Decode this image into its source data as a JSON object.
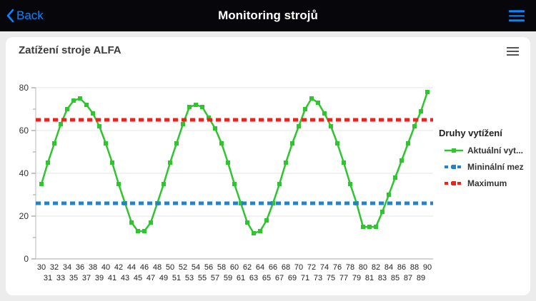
{
  "nav": {
    "back_label": "Back",
    "title": "Monitoring strojů"
  },
  "card": {
    "title": "Zatížení stroje ALFA"
  },
  "legend": {
    "title": "Druhy vytížení"
  },
  "colors": {
    "nav_accent": "#0a84ff",
    "series_green": "#2fc52f",
    "series_blue": "#2583c5",
    "series_red": "#e8251f"
  },
  "chart_data": {
    "type": "line",
    "title": "Zatížení stroje ALFA",
    "legend_title": "Druhy vytížení",
    "legend_position": "right",
    "grid": "horizontal",
    "ylim": [
      0,
      80
    ],
    "yticks": [
      0,
      20,
      40,
      60,
      80
    ],
    "yminor": [
      10,
      30,
      50,
      70
    ],
    "x": [
      30,
      31,
      32,
      33,
      34,
      35,
      36,
      37,
      38,
      39,
      40,
      41,
      42,
      43,
      44,
      45,
      46,
      47,
      48,
      49,
      50,
      51,
      52,
      53,
      54,
      55,
      56,
      57,
      58,
      59,
      60,
      61,
      62,
      63,
      64,
      65,
      66,
      67,
      68,
      69,
      70,
      71,
      72,
      73,
      74,
      75,
      76,
      77,
      78,
      79,
      80,
      81,
      82,
      83,
      84,
      85,
      86,
      87,
      88,
      89,
      90
    ],
    "series": [
      {
        "name": "Aktuální vyt...",
        "color": "#2fc52f",
        "dashed": false,
        "values": [
          35,
          45,
          54,
          63,
          70,
          74,
          75,
          72,
          68,
          62,
          54,
          45,
          35,
          26,
          17,
          13,
          13,
          17,
          26,
          35,
          45,
          54,
          63,
          71,
          72,
          71,
          66,
          61,
          54,
          45,
          35,
          26,
          17,
          12,
          13,
          18,
          26,
          35,
          45,
          54,
          62,
          70,
          75,
          73,
          68,
          62,
          54,
          45,
          35,
          26,
          15,
          15,
          15,
          22,
          30,
          38,
          46,
          54,
          62,
          69,
          78
        ]
      },
      {
        "name": "Mininální mez",
        "color": "#2583c5",
        "dashed": true,
        "value": 26
      },
      {
        "name": "Maximum",
        "color": "#e8251f",
        "dashed": true,
        "value": 65
      }
    ]
  }
}
